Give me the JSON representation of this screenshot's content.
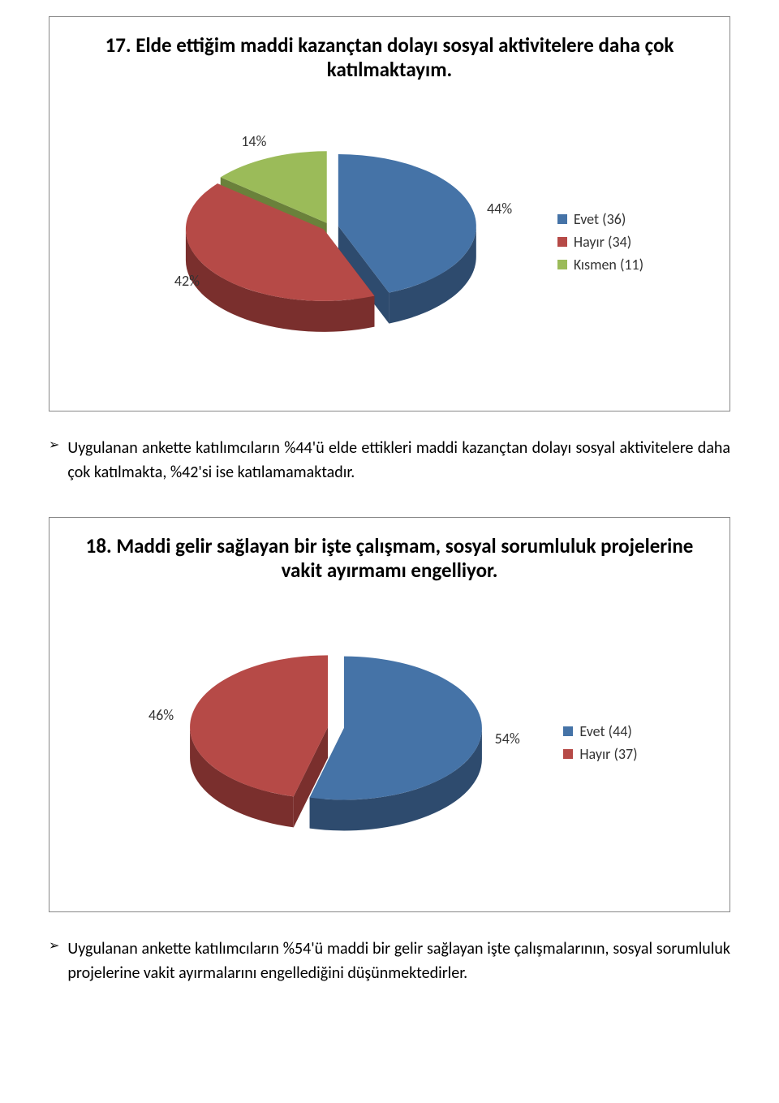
{
  "chart1": {
    "type": "pie",
    "title": "17. Elde ettiğim maddi kazançtan dolayı sosyal aktivitelere daha çok katılmaktayım.",
    "title_fontsize": 25,
    "title_color": "#000000",
    "slices": [
      {
        "label": "Evet (36)",
        "percent": 44,
        "pct_label": "44%",
        "color": "#4573a7",
        "side_color": "#2e4b6e"
      },
      {
        "label": "Hayır (34)",
        "percent": 42,
        "pct_label": "42%",
        "color": "#b64a47",
        "side_color": "#7a2f2d"
      },
      {
        "label": "Kısmen (11)",
        "percent": 14,
        "pct_label": "14%",
        "color": "#9bbb59",
        "side_color": "#6a813b"
      }
    ],
    "pie_radius": 170,
    "pie_depth": 38,
    "explode": 10,
    "label_fontsize": 18,
    "label_color": "#333333",
    "legend_fontsize": 18,
    "legend_color": "#333333",
    "border_color": "#888888",
    "background_color": "#ffffff"
  },
  "para1": {
    "bullet": "➢",
    "text": "Uygulanan ankette katılımcıların %44'ü elde ettikleri maddi kazançtan dolayı sosyal aktivitelere daha çok katılmakta, %42'si ise katılamamaktadır.",
    "fontsize": 20
  },
  "chart2": {
    "type": "pie",
    "title": "18. Maddi gelir sağlayan bir işte çalışmam, sosyal sorumluluk projelerine vakit ayırmamı engelliyor.",
    "title_fontsize": 25,
    "title_color": "#000000",
    "slices": [
      {
        "label": "Evet (44)",
        "percent": 54,
        "pct_label": "54%",
        "color": "#4573a7",
        "side_color": "#2e4b6e"
      },
      {
        "label": "Hayır (37)",
        "percent": 46,
        "pct_label": "46%",
        "color": "#b64a47",
        "side_color": "#7a2f2d"
      }
    ],
    "pie_radius": 170,
    "pie_depth": 38,
    "explode": 10,
    "label_fontsize": 18,
    "label_color": "#333333",
    "legend_fontsize": 18,
    "legend_color": "#333333",
    "border_color": "#888888",
    "background_color": "#ffffff"
  },
  "para2": {
    "bullet": "➢",
    "text": "Uygulanan ankette katılımcıların %54'ü maddi bir gelir sağlayan işte çalışmalarının, sosyal sorumluluk projelerine vakit ayırmalarını engellediğini düşünmektedirler.",
    "fontsize": 20
  }
}
